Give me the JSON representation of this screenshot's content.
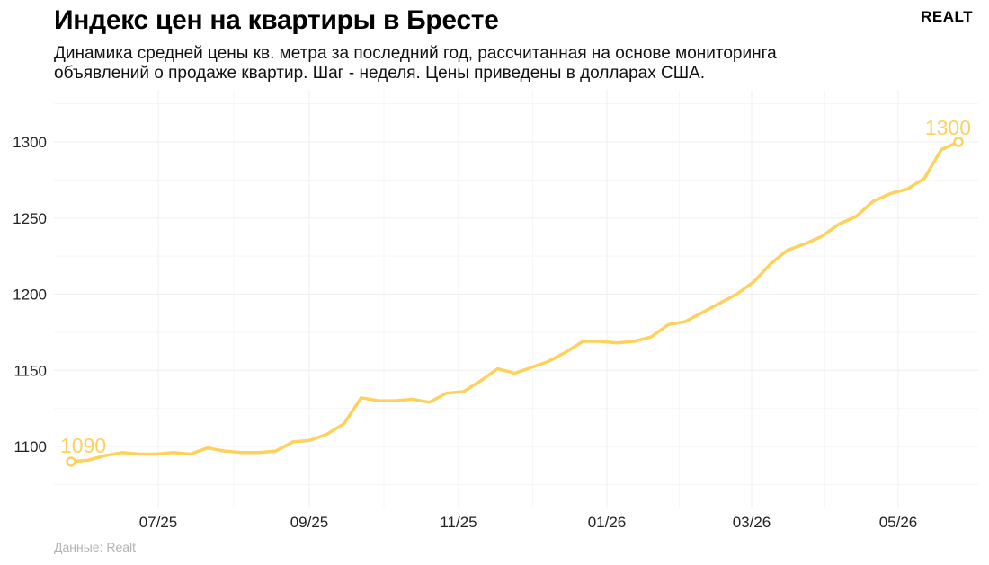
{
  "header": {
    "title": "Индекс цен на квартиры в Бресте",
    "subtitle": "Динамика средней цены кв. метра за последний год, рассчитанная на основе мониторинга объявлений о продаже квартир. Шаг - неделя. Цены приведены в долларах США.",
    "logo": "REALT"
  },
  "footer": {
    "caption": "Данные: Realt"
  },
  "colors": {
    "line": "#FDD25C",
    "grid": "#efefef"
  },
  "chart_data": {
    "type": "line",
    "title": "Индекс цен на квартиры в Бресте",
    "x_tick_labels": [
      "07/25",
      "09/25",
      "11/25",
      "01/26",
      "03/26",
      "05/26"
    ],
    "y_ticks": [
      1100,
      1150,
      1200,
      1250,
      1300
    ],
    "ylim": [
      1060,
      1330
    ],
    "grid": true,
    "legend": "none",
    "series": [
      {
        "values": [
          1090,
          1091,
          1094,
          1096,
          1095,
          1095,
          1096,
          1095,
          1099,
          1097,
          1096,
          1096,
          1097,
          1103,
          1104,
          1108,
          1115,
          1132,
          1130,
          1130,
          1131,
          1129,
          1135,
          1136,
          1143,
          1151,
          1148,
          1152,
          1156,
          1162,
          1169,
          1169,
          1168,
          1169,
          1172,
          1180,
          1182,
          1188,
          1194,
          1200,
          1208,
          1220,
          1229,
          1233,
          1238,
          1246,
          1251,
          1261,
          1266,
          1269,
          1276,
          1295,
          1300
        ]
      }
    ],
    "annotations": [
      {
        "text": "1090",
        "point": "first",
        "value": 1090
      },
      {
        "text": "1300",
        "point": "last",
        "value": 1300
      }
    ]
  }
}
